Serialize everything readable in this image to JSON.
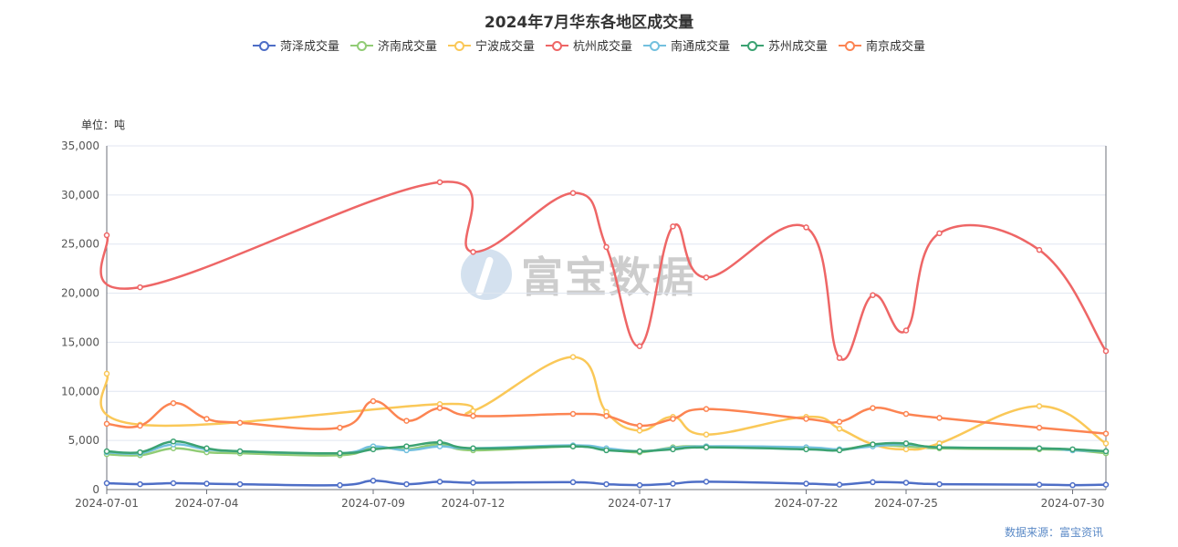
{
  "title": "2024年7月华东各地区成交量",
  "unit_label": "单位：吨",
  "source": "数据来源：富宝资讯",
  "watermark": "富宝数据",
  "chart_data": {
    "type": "line",
    "title": "2024年7月华东各地区成交量",
    "ylim": [
      0,
      35000
    ],
    "y_ticks": [
      0,
      5000,
      10000,
      15000,
      20000,
      25000,
      30000,
      35000
    ],
    "y_tick_labels": [
      "0",
      "5,000",
      "10,000",
      "15,000",
      "20,000",
      "25,000",
      "30,000",
      "35,000"
    ],
    "x_tick_labels": [
      "2024-07-01",
      "2024-07-04",
      "2024-07-09",
      "2024-07-12",
      "2024-07-17",
      "2024-07-22",
      "2024-07-25",
      "2024-07-30"
    ],
    "x": [
      "2024-07-01",
      "2024-07-02",
      "2024-07-03",
      "2024-07-04",
      "2024-07-05",
      "2024-07-08",
      "2024-07-09",
      "2024-07-10",
      "2024-07-11",
      "2024-07-12",
      "2024-07-15",
      "2024-07-16",
      "2024-07-17",
      "2024-07-18",
      "2024-07-19",
      "2024-07-22",
      "2024-07-23",
      "2024-07-24",
      "2024-07-25",
      "2024-07-26",
      "2024-07-29",
      "2024-07-30",
      "2024-07-31"
    ],
    "grid": true,
    "legend_position": "top-center",
    "series": [
      {
        "name": "菏泽成交量",
        "color": "#4e6ec6",
        "values": [
          650,
          550,
          650,
          600,
          550,
          450,
          900,
          550,
          800,
          700,
          750,
          550,
          450,
          600,
          800,
          600,
          500,
          750,
          700,
          550,
          500,
          450,
          500
        ]
      },
      {
        "name": "济南成交量",
        "color": "#91cc75",
        "values": [
          3600,
          3500,
          4200,
          3800,
          3700,
          3500,
          4300,
          4100,
          4600,
          4000,
          4400,
          4100,
          3800,
          4300,
          4400,
          4200,
          4100,
          4500,
          4400,
          4200,
          4100,
          4000,
          3700
        ]
      },
      {
        "name": "宁波成交量",
        "color": "#fac858",
        "values": [
          11800,
          6600,
          null,
          null,
          null,
          null,
          null,
          null,
          8700,
          8000,
          13500,
          7900,
          6000,
          7400,
          5600,
          7400,
          6200,
          4600,
          4100,
          4700,
          8500,
          null,
          4700
        ]
      },
      {
        "name": "杭州成交量",
        "color": "#ee6666",
        "values": [
          25900,
          20600,
          null,
          null,
          null,
          null,
          null,
          null,
          31300,
          24200,
          30200,
          24700,
          14600,
          26800,
          21600,
          26700,
          13400,
          19800,
          16200,
          26100,
          24400,
          null,
          14100
        ]
      },
      {
        "name": "南通成交量",
        "color": "#73c0de",
        "values": [
          3800,
          3700,
          4600,
          4100,
          3900,
          3700,
          4400,
          4000,
          4400,
          4200,
          4500,
          4200,
          3900,
          4200,
          4400,
          4300,
          4100,
          4400,
          4600,
          4300,
          4200,
          4000,
          3900
        ]
      },
      {
        "name": "苏州成交量",
        "color": "#3ba272",
        "values": [
          3900,
          3800,
          4900,
          4200,
          3900,
          3700,
          4100,
          4400,
          4800,
          4200,
          4400,
          4000,
          3900,
          4100,
          4300,
          4100,
          4000,
          4600,
          4700,
          4300,
          4200,
          4100,
          3900
        ]
      },
      {
        "name": "南京成交量",
        "color": "#fc8452",
        "values": [
          6700,
          6500,
          8800,
          7200,
          6800,
          6300,
          9000,
          7000,
          8300,
          7500,
          7700,
          7500,
          6500,
          7200,
          8200,
          7200,
          6900,
          8300,
          7700,
          7300,
          6300,
          null,
          5700
        ]
      }
    ]
  }
}
